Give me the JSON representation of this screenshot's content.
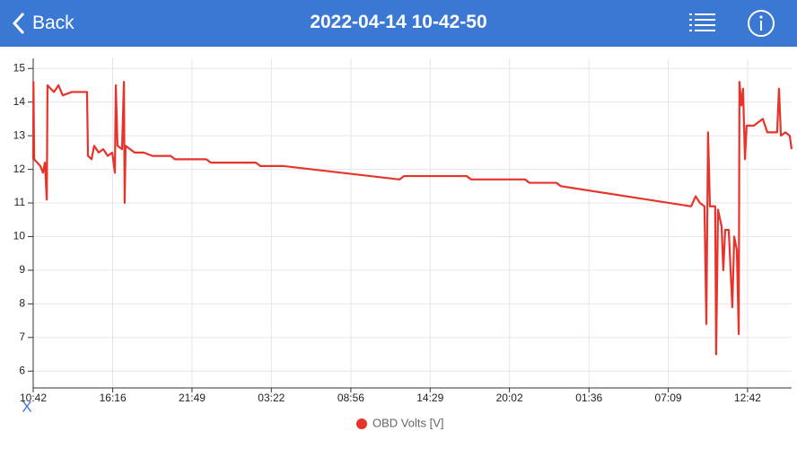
{
  "header": {
    "back": "Back",
    "title": "2022-04-14 10-42-50"
  },
  "chart_data": {
    "type": "line",
    "x_label": "X",
    "x": [
      0,
      1,
      4,
      30,
      41,
      49,
      57,
      60,
      87,
      106,
      124,
      162,
      200,
      226,
      230,
      245,
      256,
      275,
      294,
      313,
      332,
      343,
      347,
      354,
      373,
      381,
      384,
      388,
      407,
      426,
      464,
      501,
      577,
      596,
      727,
      746,
      935,
      954,
      1048,
      1538,
      1557,
      1820,
      1839,
      2065,
      2084,
      2197,
      2216,
      2763,
      2782,
      2800,
      2819,
      2827,
      2834,
      2842,
      2864,
      2868,
      2876,
      2891,
      2898,
      2906,
      2921,
      2936,
      2944,
      2955,
      2963,
      2966,
      2974,
      2981,
      2989,
      2996,
      3027,
      3045,
      3064,
      3083,
      3124,
      3132,
      3140,
      3159,
      3177,
      3185
    ],
    "series": [
      {
        "name": "OBD Volts [V]",
        "color": "#e8332b",
        "values": [
          12.3,
          14.6,
          12.3,
          12.1,
          11.9,
          12.2,
          11.1,
          14.5,
          14.3,
          14.5,
          14.2,
          14.3,
          14.3,
          14.3,
          12.4,
          12.3,
          12.7,
          12.5,
          12.6,
          12.4,
          12.5,
          11.9,
          14.5,
          12.7,
          12.6,
          14.6,
          11.0,
          12.7,
          12.6,
          12.5,
          12.5,
          12.4,
          12.4,
          12.3,
          12.3,
          12.2,
          12.2,
          12.1,
          12.1,
          11.7,
          11.8,
          11.8,
          11.7,
          11.7,
          11.6,
          11.6,
          11.5,
          10.9,
          11.2,
          11.0,
          10.9,
          7.4,
          13.1,
          10.9,
          10.9,
          6.5,
          10.8,
          10.3,
          9.0,
          10.2,
          10.2,
          7.9,
          10.0,
          9.6,
          7.1,
          14.6,
          13.9,
          14.4,
          12.3,
          13.3,
          13.3,
          13.4,
          13.5,
          13.1,
          13.1,
          14.4,
          13.0,
          13.1,
          13.0,
          12.6
        ]
      }
    ],
    "xlim": [
      0,
      3185
    ],
    "ylim": [
      5.5,
      15.3
    ],
    "xticks": [
      {
        "value": 0,
        "label": "10:42"
      },
      {
        "value": 334,
        "label": "16:16"
      },
      {
        "value": 667,
        "label": "21:49"
      },
      {
        "value": 1000,
        "label": "03:22"
      },
      {
        "value": 1334,
        "label": "08:56"
      },
      {
        "value": 1667,
        "label": "14:29"
      },
      {
        "value": 2000,
        "label": "20:02"
      },
      {
        "value": 2334,
        "label": "01:36"
      },
      {
        "value": 2667,
        "label": "07:09"
      },
      {
        "value": 3000,
        "label": "12:42"
      }
    ],
    "yticks": [
      6,
      7,
      8,
      9,
      10,
      11,
      12,
      13,
      14,
      15
    ],
    "grid": true
  }
}
